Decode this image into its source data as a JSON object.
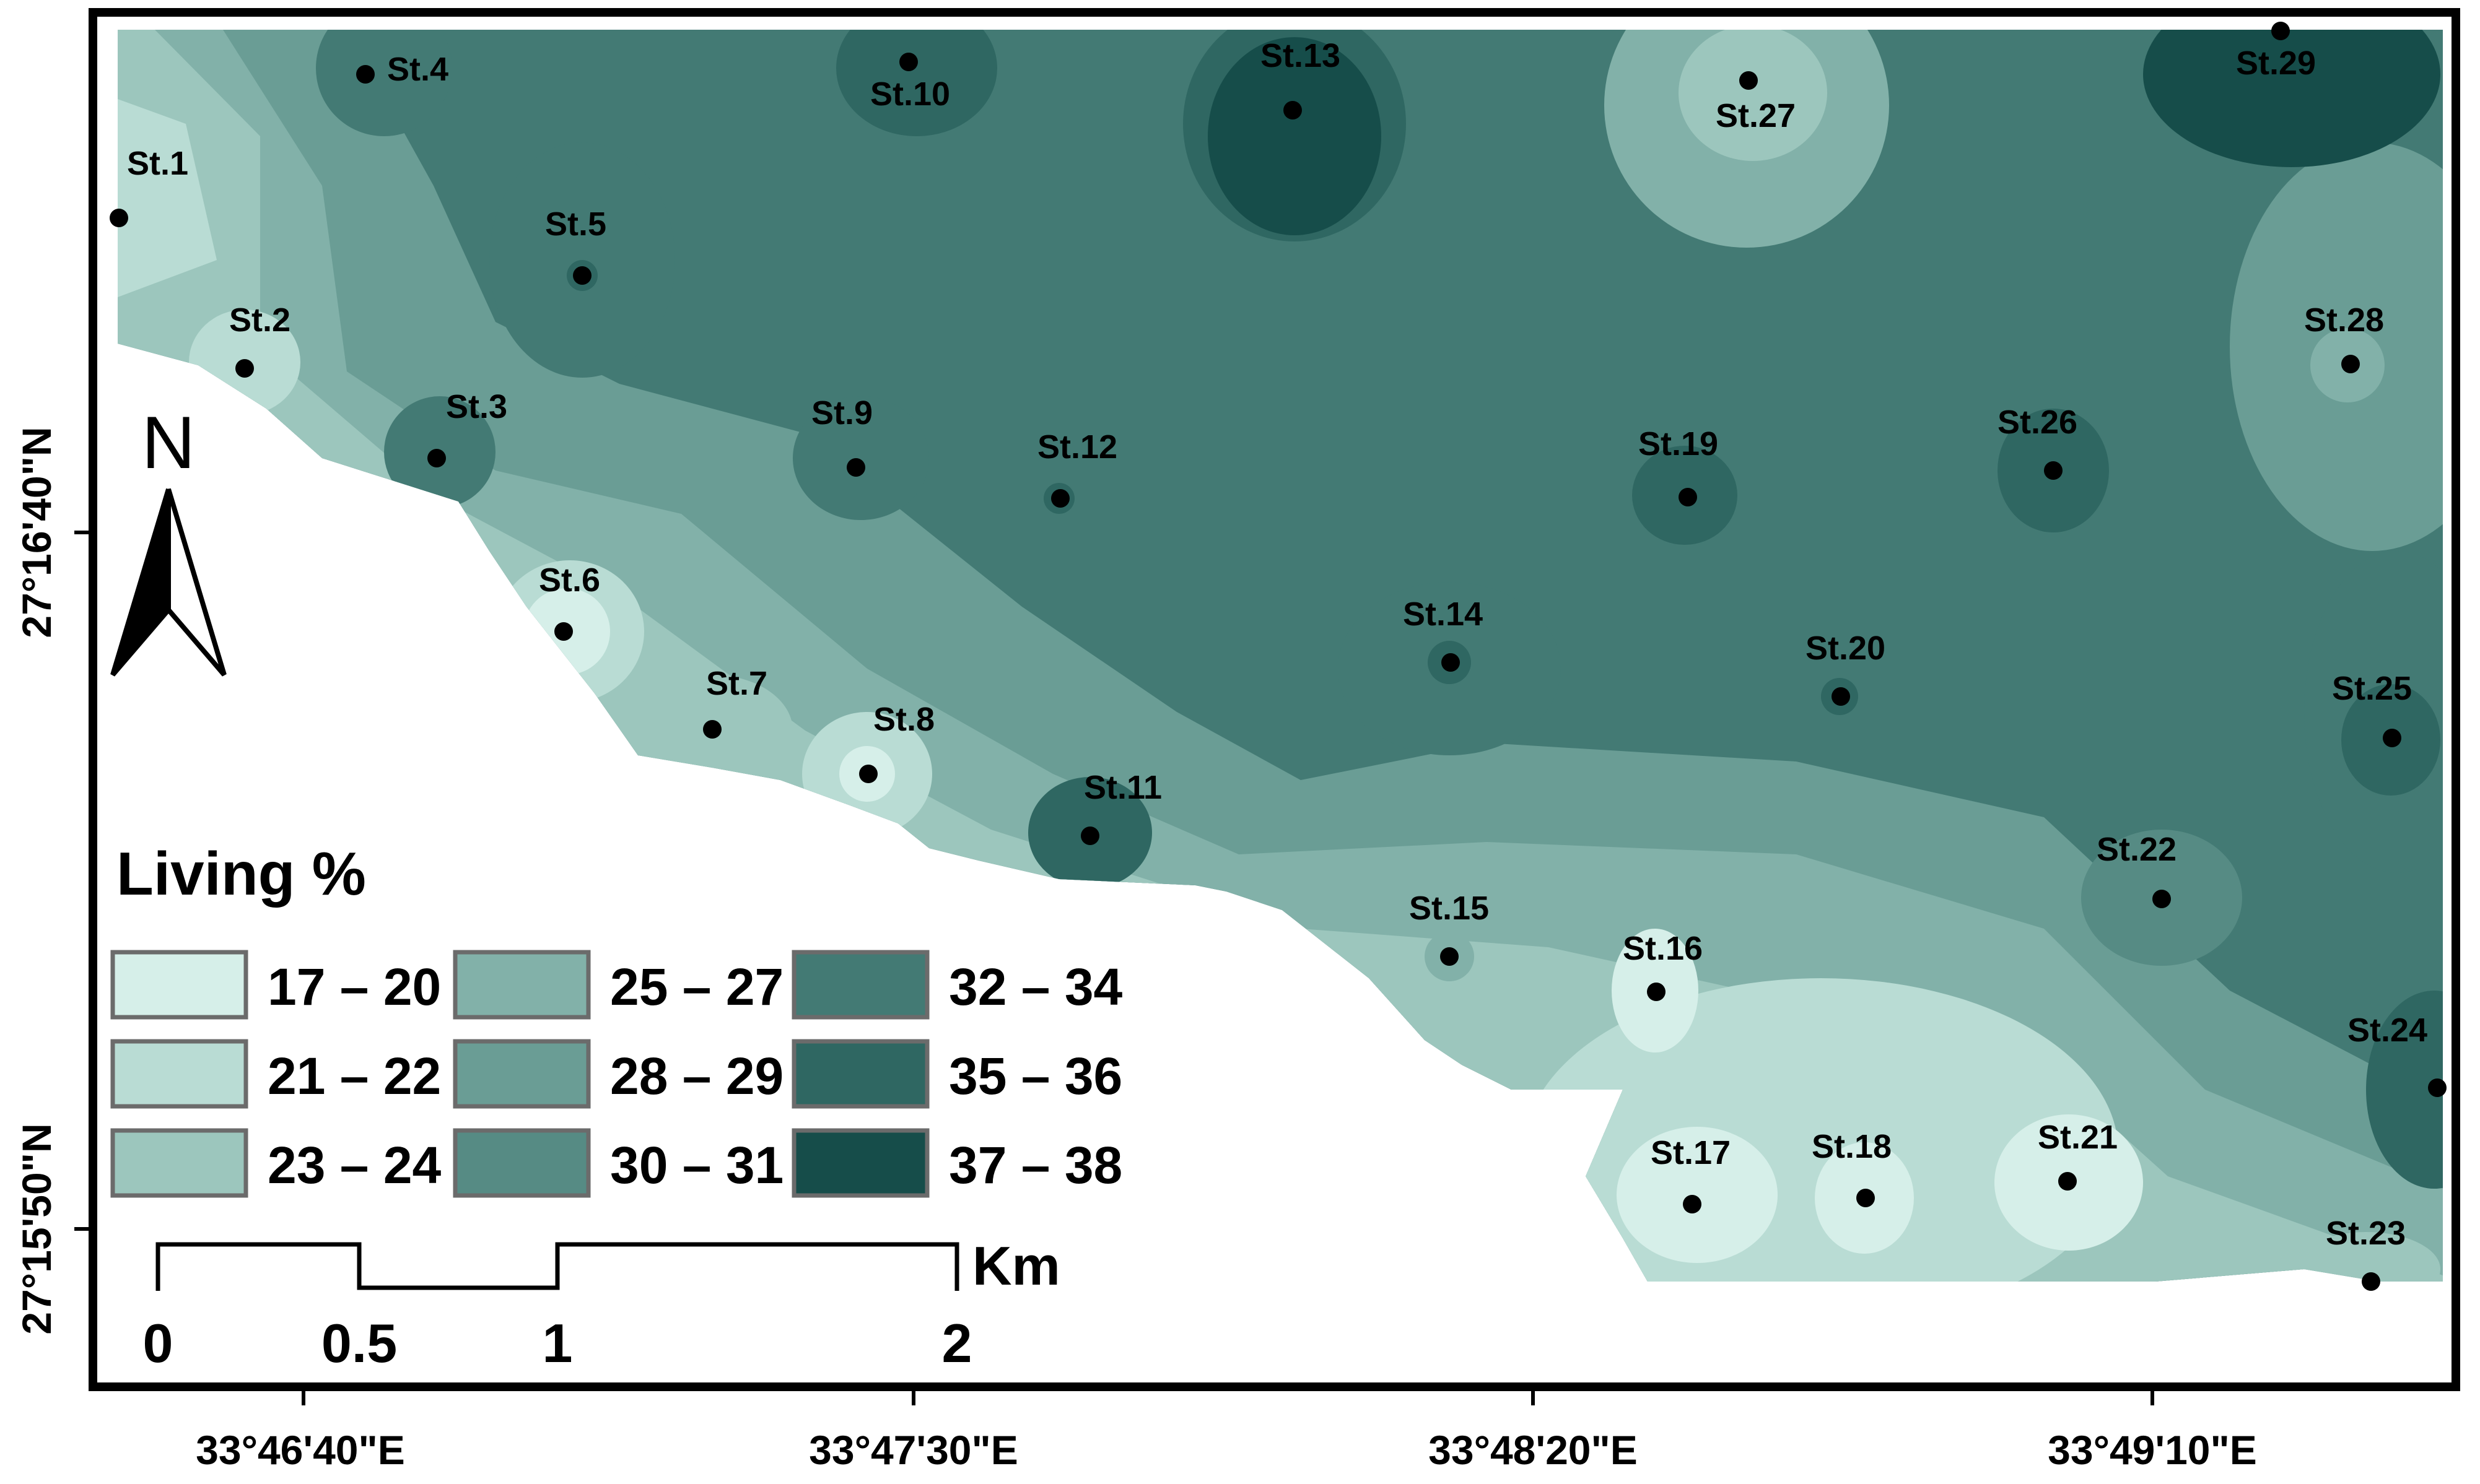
{
  "legend": {
    "title": "Living %",
    "classes": [
      {
        "label": "17 – 20",
        "color": "#d6efe9"
      },
      {
        "label": "21 – 22",
        "color": "#b9dcd4"
      },
      {
        "label": "23 – 24",
        "color": "#9cc6bd"
      },
      {
        "label": "25 – 27",
        "color": "#82b1a9"
      },
      {
        "label": "28 – 29",
        "color": "#6a9d95"
      },
      {
        "label": "30 – 31",
        "color": "#568b84"
      },
      {
        "label": "32 – 34",
        "color": "#437a74"
      },
      {
        "label": "35 – 36",
        "color": "#2f6762"
      },
      {
        "label": "37 – 38",
        "color": "#164d4a"
      }
    ]
  },
  "scale_bar": {
    "unit": "Km",
    "ticks": [
      "0",
      "0.5",
      "1",
      "2"
    ]
  },
  "north_arrow": {
    "label": "N",
    "icon": "north-arrow-icon"
  },
  "axes": {
    "x_ticks": [
      "33°46'40\"E",
      "33°47'30\"E",
      "33°48'20\"E",
      "33°49'10\"E"
    ],
    "y_ticks": [
      "27°16'40\"N",
      "27°15'50\"N"
    ]
  },
  "stations": [
    {
      "label": "St.1",
      "value_class": 2
    },
    {
      "label": "St.2",
      "value_class": 1
    },
    {
      "label": "St.3",
      "value_class": 6
    },
    {
      "label": "St.4",
      "value_class": 6
    },
    {
      "label": "St.5",
      "value_class": 6
    },
    {
      "label": "St.6",
      "value_class": 0
    },
    {
      "label": "St.7",
      "value_class": 2
    },
    {
      "label": "St.8",
      "value_class": 0
    },
    {
      "label": "St.9",
      "value_class": 6
    },
    {
      "label": "St.10",
      "value_class": 7
    },
    {
      "label": "St.11",
      "value_class": 6
    },
    {
      "label": "St.12",
      "value_class": 7
    },
    {
      "label": "St.13",
      "value_class": 8
    },
    {
      "label": "St.14",
      "value_class": 7
    },
    {
      "label": "St.15",
      "value_class": 3
    },
    {
      "label": "St.16",
      "value_class": 0
    },
    {
      "label": "St.17",
      "value_class": 0
    },
    {
      "label": "St.18",
      "value_class": 0
    },
    {
      "label": "St.19",
      "value_class": 7
    },
    {
      "label": "St.20",
      "value_class": 6
    },
    {
      "label": "St.21",
      "value_class": 0
    },
    {
      "label": "St.22",
      "value_class": 5
    },
    {
      "label": "St.23",
      "value_class": 2
    },
    {
      "label": "St.24",
      "value_class": 7
    },
    {
      "label": "St.25",
      "value_class": 7
    },
    {
      "label": "St.26",
      "value_class": 7
    },
    {
      "label": "St.27",
      "value_class": 3
    },
    {
      "label": "St.28",
      "value_class": 3
    },
    {
      "label": "St.29",
      "value_class": 8
    }
  ]
}
